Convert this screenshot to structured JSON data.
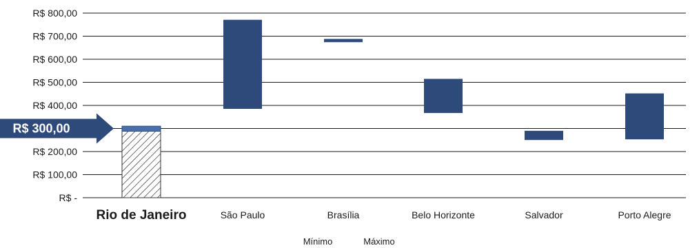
{
  "chart_data": {
    "type": "bar",
    "subtype": "floating-range",
    "categories": [
      "Rio de Janeiro",
      "São Paulo",
      "Brasília",
      "Belo Horizonte",
      "Salvador",
      "Porto Alegre"
    ],
    "highlight_category": "Rio de Janeiro",
    "series": [
      {
        "name": "Mínimo",
        "values": [
          288,
          385,
          674,
          367,
          250,
          253
        ]
      },
      {
        "name": "Máximo",
        "values": [
          310,
          771,
          688,
          515,
          290,
          452
        ]
      }
    ],
    "yticks": [
      {
        "value": 0,
        "label": "R$ -"
      },
      {
        "value": 100,
        "label": "R$ 100,00"
      },
      {
        "value": 200,
        "label": "R$ 200,00"
      },
      {
        "value": 300,
        "label": "R$ 300,00"
      },
      {
        "value": 400,
        "label": "R$ 400,00"
      },
      {
        "value": 500,
        "label": "R$ 500,00"
      },
      {
        "value": 600,
        "label": "R$ 600,00"
      },
      {
        "value": 700,
        "label": "R$ 700,00"
      },
      {
        "value": 800,
        "label": "R$ 800,00"
      }
    ],
    "ylim": [
      0,
      800
    ],
    "grid": true,
    "legend": "bottom-center",
    "reference_marker": {
      "value": 300,
      "label": "R$ 300,00"
    },
    "colors": {
      "bar": "#2e4a7a",
      "highlight_top": "#4a6fad",
      "hatch": "#333333",
      "grid": "#1a1a1a"
    }
  }
}
